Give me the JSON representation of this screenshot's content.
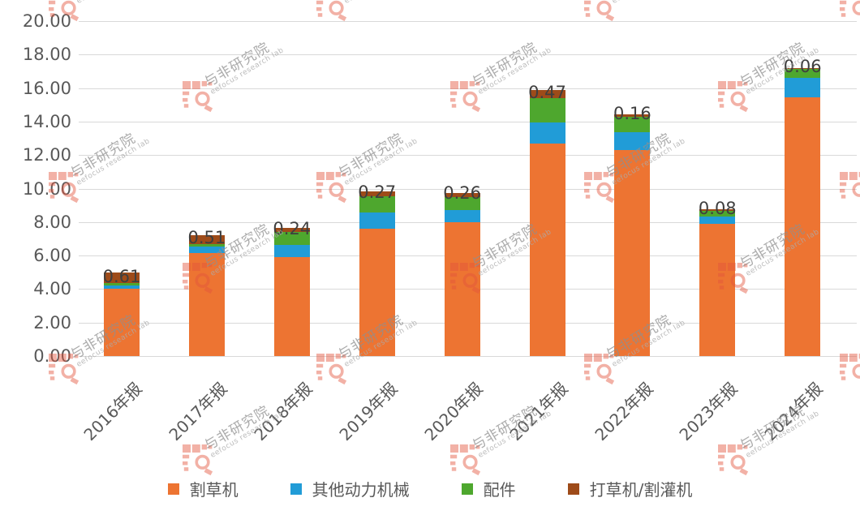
{
  "watermark": {
    "cn": "与非研究院",
    "en": "eefocus research lab"
  },
  "colors": {
    "background": "#FFFFFF",
    "grid": "#D9D9D9",
    "axis_text": "#595959",
    "data_label": "#3F3F3F",
    "watermark_red": "#E4533B"
  },
  "chart_data": {
    "type": "bar",
    "stacked": true,
    "title": "",
    "xlabel": "",
    "ylabel": "",
    "categories": [
      "2016年报",
      "2017年报",
      "2018年报",
      "2019年报",
      "2020年报",
      "2021年报",
      "2022年报",
      "2023年报",
      "2024年报"
    ],
    "series": [
      {
        "name": "割草机",
        "color": "#ED7432",
        "values": [
          4.02,
          6.15,
          5.92,
          7.6,
          8.0,
          12.7,
          12.3,
          7.9,
          15.45
        ]
      },
      {
        "name": "其他动力机械",
        "color": "#219CD7",
        "values": [
          0.19,
          0.4,
          0.73,
          0.97,
          0.73,
          1.26,
          1.07,
          0.44,
          1.16
        ]
      },
      {
        "name": "配件",
        "color": "#4EA72E",
        "values": [
          0.15,
          0.15,
          0.74,
          0.97,
          0.76,
          1.44,
          0.92,
          0.34,
          0.53
        ]
      },
      {
        "name": "打草机/割灌机",
        "color": "#9E4B19",
        "values": [
          0.61,
          0.51,
          0.24,
          0.27,
          0.26,
          0.47,
          0.16,
          0.08,
          0.06
        ]
      }
    ],
    "data_labels": {
      "series": "打草机/割灌机",
      "values": [
        "0.61",
        "0.51",
        "0.24",
        "0.27",
        "0.26",
        "0.47",
        "0.16",
        "0.08",
        "0.06"
      ]
    },
    "ylim": [
      0,
      20
    ],
    "ytick_step": 2,
    "yticks": [
      "0.00",
      "2.00",
      "4.00",
      "6.00",
      "8.00",
      "10.00",
      "12.00",
      "14.00",
      "16.00",
      "18.00",
      "20.00"
    ],
    "grid": true,
    "legend_position": "bottom"
  }
}
